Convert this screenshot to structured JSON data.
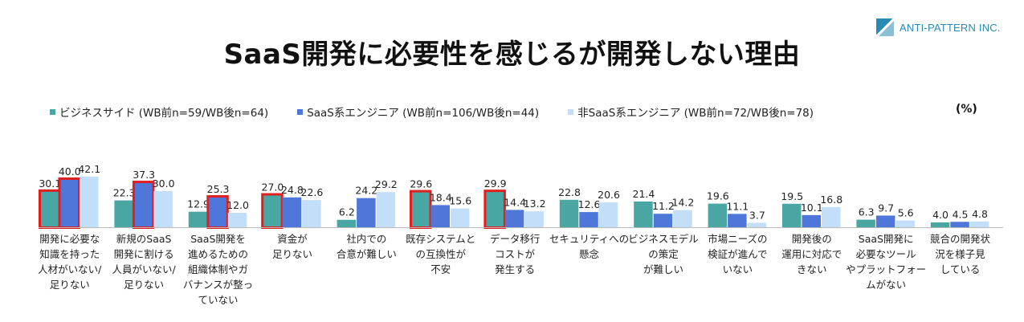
{
  "brand": {
    "name": "ANTI-PATTERN INC.",
    "mark_icon": "logo-triangles-icon",
    "color": "#2a8ab4"
  },
  "chart_data": {
    "type": "bar",
    "title": "SaaS開発に必要性を感じるが開発しない理由",
    "unit_label": "(%)",
    "categories": [
      [
        "開発に必要な",
        "知識を持った",
        "人材がいない/",
        "足りない"
      ],
      [
        "新規のSaaS",
        "開発に割ける",
        "人員がいない/",
        "足りない"
      ],
      [
        "SaaS開発を",
        "進めるための",
        "組織体制やガ",
        "バナンスが整っ",
        "ていない"
      ],
      [
        "資金が",
        "足りない"
      ],
      [
        "社内での",
        "合意が難しい"
      ],
      [
        "既存システムと",
        "の互換性が",
        "不安"
      ],
      [
        "データ移行",
        "コストが",
        "発生する"
      ],
      [
        "セキュリティへの",
        "懸念"
      ],
      [
        "ビジネスモデル",
        "の策定",
        "が難しい"
      ],
      [
        "市場ニーズの",
        "検証が進んで",
        "いない"
      ],
      [
        "開発後の",
        "運用に対応で",
        "きない"
      ],
      [
        "SaaS開発に",
        "必要なツール",
        "やプラットフォー",
        "ムがない"
      ],
      [
        "競合の開発状",
        "況を様子見",
        "している"
      ]
    ],
    "series": [
      {
        "name": "ビジネスサイド (WB前n=59/WB後n=64)",
        "color": "#4aa6a3",
        "values": [
          30.1,
          22.3,
          12.9,
          27.0,
          6.2,
          29.6,
          29.9,
          22.8,
          21.4,
          19.6,
          19.5,
          6.3,
          4.0
        ]
      },
      {
        "name": "SaaS系エンジニア (WB前n=106/WB後n=44)",
        "color": "#4f77d9",
        "values": [
          40.0,
          37.3,
          25.3,
          24.8,
          24.2,
          18.4,
          14.4,
          12.6,
          11.2,
          11.1,
          10.1,
          9.7,
          4.5
        ]
      },
      {
        "name": "非SaaS系エンジニア (WB前n=72/WB後n=78)",
        "color": "#c3def8",
        "values": [
          42.1,
          30.0,
          12.0,
          22.6,
          29.2,
          15.6,
          13.2,
          20.6,
          14.2,
          3.7,
          16.8,
          5.6,
          4.8
        ]
      }
    ],
    "highlights": [
      {
        "category_index": 0,
        "series_index": 0
      },
      {
        "category_index": 0,
        "series_index": 1
      },
      {
        "category_index": 1,
        "series_index": 1
      },
      {
        "category_index": 2,
        "series_index": 1
      },
      {
        "category_index": 3,
        "series_index": 0
      },
      {
        "category_index": 5,
        "series_index": 0
      },
      {
        "category_index": 6,
        "series_index": 0
      }
    ],
    "highlight_color": "#e02020",
    "ylim": [
      0,
      45
    ],
    "xlabel": "",
    "ylabel": "",
    "grid": false,
    "legend": "top-left"
  }
}
